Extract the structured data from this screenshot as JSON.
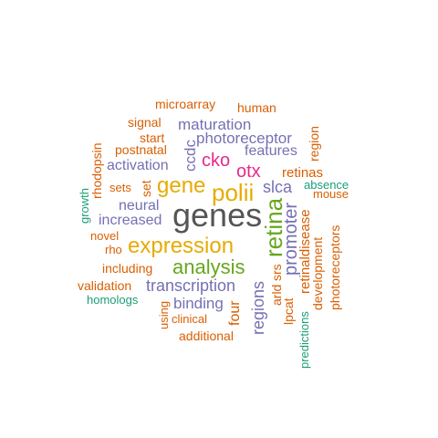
{
  "words": {
    "genes": "genes",
    "expression": "expression",
    "analysis": "analysis",
    "polii": "polii",
    "gene": "gene",
    "retina": "retina",
    "otx": "otx",
    "cko": "cko",
    "transcription": "transcription",
    "photoreceptor": "photoreceptor",
    "maturation": "maturation",
    "slca": "slca",
    "promoter": "promoter",
    "regions": "regions",
    "four": "four",
    "activation": "activation",
    "increased": "increased",
    "neural": "neural",
    "features": "features",
    "binding": "binding",
    "ccdc": "ccdc",
    "retinas": "retinas",
    "microarray": "microarray",
    "human": "human",
    "signal": "signal",
    "start": "start",
    "postnatal": "postnatal",
    "region": "region",
    "rhodopsin": "rhodopsin",
    "sets": "sets",
    "set": "set",
    "growth": "growth",
    "absence": "absence",
    "mouse": "mouse",
    "novel": "novel",
    "rho": "rho",
    "including": "including",
    "validation": "validation",
    "homologs": "homologs",
    "using": "using",
    "clinical": "clinical",
    "additional": "additional",
    "srs": "srs",
    "arld": "arld",
    "lpcat": "lpcat",
    "retinaldisease": "retinaldisease",
    "development": "development",
    "photoreceptors": "photoreceptors",
    "predictions": "predictions"
  },
  "colors": {
    "gray": "#555555",
    "orange": "#d95f02",
    "purple": "#7570b3",
    "green": "#66a61e",
    "teal": "#1b9e77",
    "gold": "#e6ab02",
    "magenta": "#e7298a"
  }
}
